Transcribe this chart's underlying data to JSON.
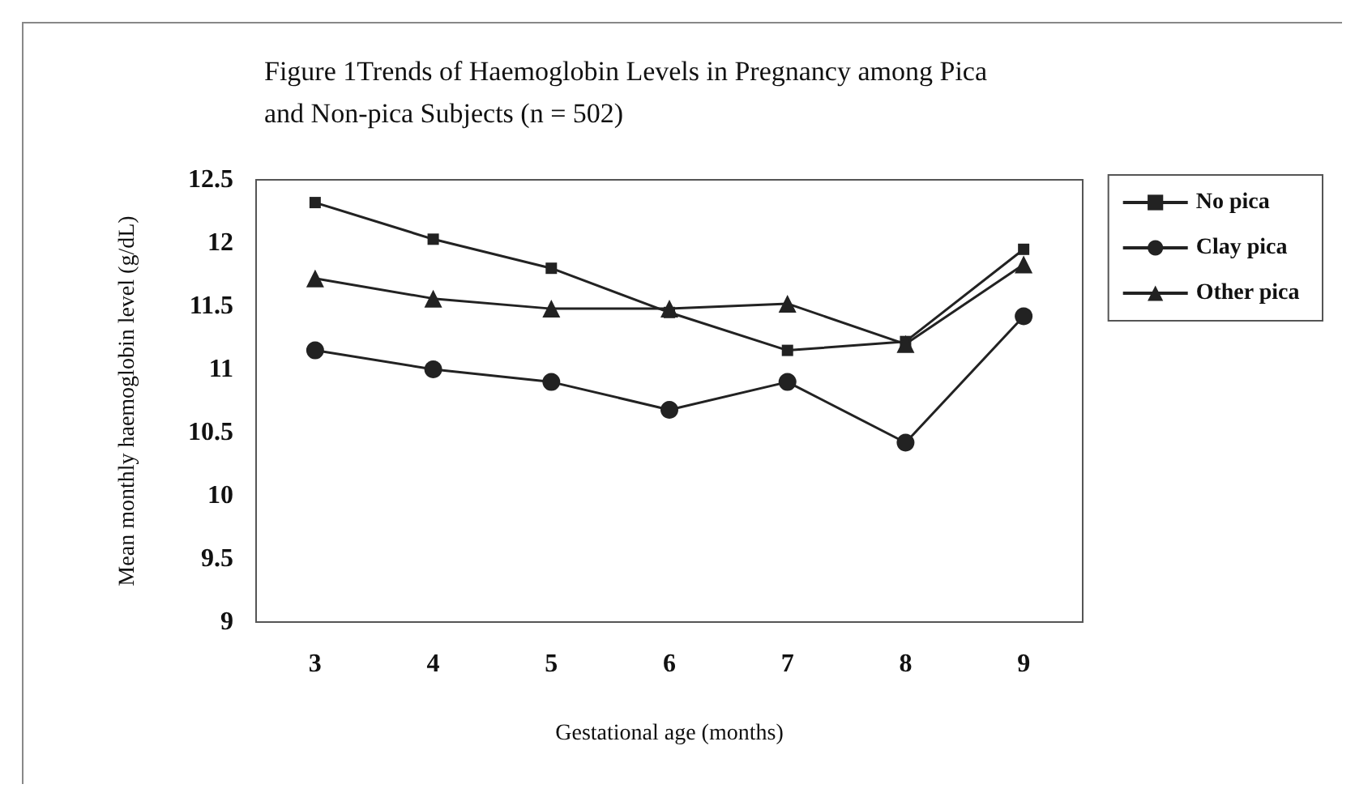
{
  "chart_data": {
    "type": "line",
    "title": "Figure 1Trends of Haemoglobin Levels in Pregnancy among Pica and Non-pica Subjects (n = 502)",
    "xlabel": "Gestational age (months)",
    "ylabel": "Mean monthly haemoglobin level (g/dL)",
    "categories": [
      "3",
      "4",
      "5",
      "6",
      "7",
      "8",
      "9"
    ],
    "series": [
      {
        "name": "No pica",
        "color": "#222222",
        "marker": "square",
        "values": [
          12.32,
          12.03,
          11.8,
          11.45,
          11.15,
          11.22,
          11.95
        ]
      },
      {
        "name": "Clay pica",
        "color": "#222222",
        "marker": "circle",
        "values": [
          11.15,
          11.0,
          10.9,
          10.68,
          10.9,
          10.42,
          11.42
        ]
      },
      {
        "name": "Other pica",
        "color": "#222222",
        "marker": "triangle",
        "values": [
          11.72,
          11.56,
          11.48,
          11.48,
          11.52,
          11.2,
          11.83
        ]
      }
    ],
    "ylim": [
      9,
      12.5
    ],
    "yticks": [
      9,
      9.5,
      10,
      10.5,
      11,
      11.5,
      12,
      12.5
    ],
    "grid": false,
    "legend": "right",
    "line_style": "solid"
  }
}
